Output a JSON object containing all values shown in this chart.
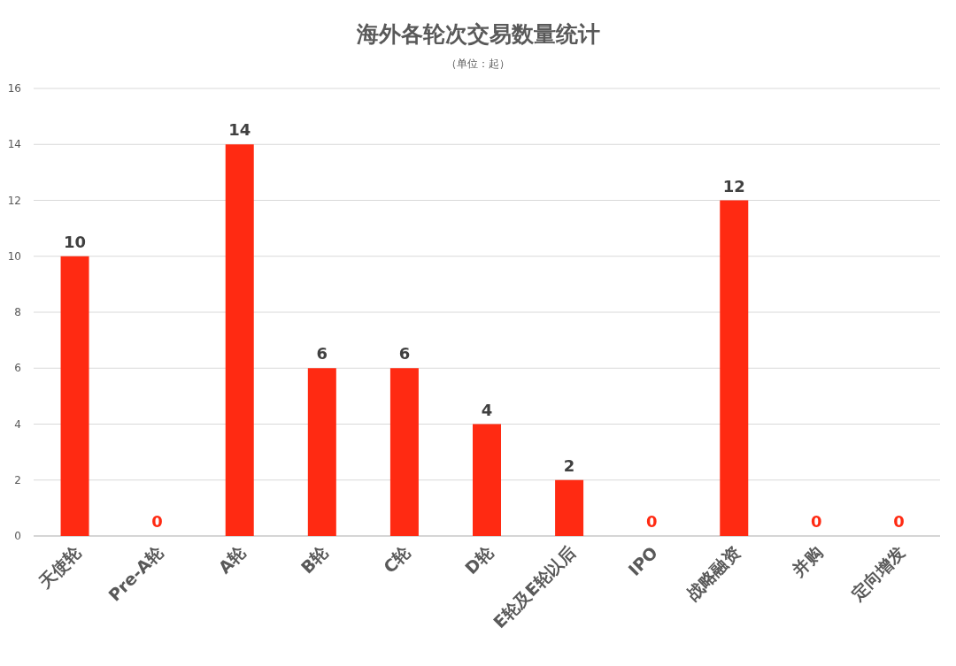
{
  "chart_data": {
    "type": "bar",
    "title": "海外各轮次交易数量统计",
    "subtitle": "（单位：起）",
    "categories": [
      "天使轮",
      "Pre-A轮",
      "A轮",
      "B轮",
      "C轮",
      "D轮",
      "E轮及E轮以后",
      "IPO",
      "战略融资",
      "并购",
      "定向增发"
    ],
    "values": [
      10,
      0,
      14,
      6,
      6,
      4,
      2,
      0,
      12,
      0,
      0
    ],
    "color": "#ff2a12",
    "ylim": [
      0,
      16
    ],
    "yticks": [
      0,
      2,
      4,
      6,
      8,
      10,
      12,
      14,
      16
    ],
    "grid": "y",
    "data_labels": true
  }
}
